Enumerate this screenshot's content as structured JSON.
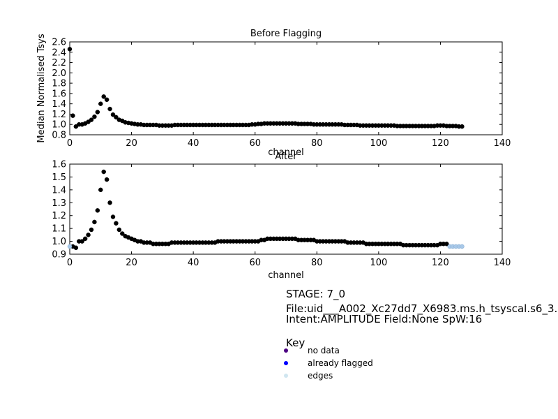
{
  "chart_data": [
    {
      "type": "scatter",
      "title": "Before Flagging",
      "xlabel": "channel",
      "ylabel": "Median Normalised Tsys",
      "xlim": [
        0,
        140
      ],
      "ylim": [
        0.8,
        2.6
      ],
      "xticks": [
        "0",
        "20",
        "40",
        "60",
        "80",
        "100",
        "120",
        "140"
      ],
      "yticks": [
        "0.8",
        "1.0",
        "1.2",
        "1.4",
        "1.6",
        "1.8",
        "2.0",
        "2.2",
        "2.4",
        "2.6"
      ],
      "series": [
        {
          "color": "#000000",
          "x": [
            0,
            1,
            2,
            3,
            4,
            5,
            6,
            7,
            8,
            9,
            10,
            11,
            12,
            13,
            14,
            15,
            16,
            17,
            18,
            19,
            20,
            21,
            22,
            23,
            24,
            25,
            26,
            27,
            28,
            29,
            30,
            31,
            32,
            33,
            34,
            35,
            36,
            37,
            38,
            39,
            40,
            41,
            42,
            43,
            44,
            45,
            46,
            47,
            48,
            49,
            50,
            51,
            52,
            53,
            54,
            55,
            56,
            57,
            58,
            59,
            60,
            61,
            62,
            63,
            64,
            65,
            66,
            67,
            68,
            69,
            70,
            71,
            72,
            73,
            74,
            75,
            76,
            77,
            78,
            79,
            80,
            81,
            82,
            83,
            84,
            85,
            86,
            87,
            88,
            89,
            90,
            91,
            92,
            93,
            94,
            95,
            96,
            97,
            98,
            99,
            100,
            101,
            102,
            103,
            104,
            105,
            106,
            107,
            108,
            109,
            110,
            111,
            112,
            113,
            114,
            115,
            116,
            117,
            118,
            119,
            120,
            121,
            122,
            123,
            124,
            125,
            126,
            127
          ],
          "y": [
            2.46,
            1.17,
            0.96,
            1.0,
            1.0,
            1.02,
            1.05,
            1.09,
            1.15,
            1.24,
            1.4,
            1.54,
            1.48,
            1.3,
            1.19,
            1.14,
            1.09,
            1.07,
            1.04,
            1.03,
            1.02,
            1.01,
            1.0,
            1.0,
            0.99,
            0.99,
            0.99,
            0.99,
            0.99,
            0.98,
            0.98,
            0.98,
            0.98,
            0.98,
            0.99,
            0.99,
            0.99,
            0.99,
            0.99,
            0.99,
            0.99,
            0.99,
            0.99,
            0.99,
            0.99,
            0.99,
            0.99,
            0.99,
            0.99,
            0.99,
            0.99,
            0.99,
            0.99,
            0.99,
            0.99,
            0.99,
            0.99,
            0.99,
            0.99,
            1.0,
            1.0,
            1.01,
            1.01,
            1.02,
            1.02,
            1.02,
            1.02,
            1.02,
            1.02,
            1.02,
            1.02,
            1.02,
            1.02,
            1.02,
            1.01,
            1.01,
            1.01,
            1.01,
            1.01,
            1.0,
            1.0,
            1.0,
            1.0,
            1.0,
            1.0,
            1.0,
            1.0,
            1.0,
            1.0,
            0.99,
            0.99,
            0.99,
            0.99,
            0.99,
            0.98,
            0.98,
            0.98,
            0.98,
            0.98,
            0.98,
            0.98,
            0.98,
            0.98,
            0.98,
            0.98,
            0.98,
            0.97,
            0.97,
            0.97,
            0.97,
            0.97,
            0.97,
            0.97,
            0.97,
            0.97,
            0.97,
            0.97,
            0.97,
            0.97,
            0.98,
            0.98,
            0.98,
            0.97,
            0.97,
            0.97,
            0.97,
            0.96,
            0.96
          ]
        }
      ]
    },
    {
      "type": "scatter",
      "title": "After",
      "xlabel": "channel",
      "ylabel": "",
      "xlim": [
        0,
        140
      ],
      "ylim": [
        0.9,
        1.6
      ],
      "xticks": [
        "0",
        "20",
        "40",
        "60",
        "80",
        "100",
        "120",
        "140"
      ],
      "yticks": [
        "0.9",
        "1.0",
        "1.1",
        "1.2",
        "1.3",
        "1.4",
        "1.5",
        "1.6"
      ],
      "series": [
        {
          "color": "#000000",
          "x": [
            1,
            2,
            3,
            4,
            5,
            6,
            7,
            8,
            9,
            10,
            11,
            12,
            13,
            14,
            15,
            16,
            17,
            18,
            19,
            20,
            21,
            22,
            23,
            24,
            25,
            26,
            27,
            28,
            29,
            30,
            31,
            32,
            33,
            34,
            35,
            36,
            37,
            38,
            39,
            40,
            41,
            42,
            43,
            44,
            45,
            46,
            47,
            48,
            49,
            50,
            51,
            52,
            53,
            54,
            55,
            56,
            57,
            58,
            59,
            60,
            61,
            62,
            63,
            64,
            65,
            66,
            67,
            68,
            69,
            70,
            71,
            72,
            73,
            74,
            75,
            76,
            77,
            78,
            79,
            80,
            81,
            82,
            83,
            84,
            85,
            86,
            87,
            88,
            89,
            90,
            91,
            92,
            93,
            94,
            95,
            96,
            97,
            98,
            99,
            100,
            101,
            102,
            103,
            104,
            105,
            106,
            107,
            108,
            109,
            110,
            111,
            112,
            113,
            114,
            115,
            116,
            117,
            118,
            119,
            120,
            121,
            122
          ],
          "y": [
            0.96,
            0.95,
            1.0,
            1.0,
            1.02,
            1.05,
            1.09,
            1.15,
            1.24,
            1.4,
            1.54,
            1.48,
            1.3,
            1.19,
            1.14,
            1.09,
            1.06,
            1.04,
            1.03,
            1.02,
            1.01,
            1.0,
            1.0,
            0.99,
            0.99,
            0.99,
            0.98,
            0.98,
            0.98,
            0.98,
            0.98,
            0.98,
            0.99,
            0.99,
            0.99,
            0.99,
            0.99,
            0.99,
            0.99,
            0.99,
            0.99,
            0.99,
            0.99,
            0.99,
            0.99,
            0.99,
            0.99,
            1.0,
            1.0,
            1.0,
            1.0,
            1.0,
            1.0,
            1.0,
            1.0,
            1.0,
            1.0,
            1.0,
            1.0,
            1.0,
            1.0,
            1.01,
            1.01,
            1.02,
            1.02,
            1.02,
            1.02,
            1.02,
            1.02,
            1.02,
            1.02,
            1.02,
            1.02,
            1.01,
            1.01,
            1.01,
            1.01,
            1.01,
            1.01,
            1.0,
            1.0,
            1.0,
            1.0,
            1.0,
            1.0,
            1.0,
            1.0,
            1.0,
            1.0,
            0.99,
            0.99,
            0.99,
            0.99,
            0.99,
            0.99,
            0.98,
            0.98,
            0.98,
            0.98,
            0.98,
            0.98,
            0.98,
            0.98,
            0.98,
            0.98,
            0.98,
            0.98,
            0.97,
            0.97,
            0.97,
            0.97,
            0.97,
            0.97,
            0.97,
            0.97,
            0.97,
            0.97,
            0.97,
            0.97,
            0.98,
            0.98,
            0.98
          ]
        },
        {
          "color": "#a8c8e8",
          "x": [
            0,
            123,
            124,
            125,
            126,
            127
          ],
          "y": [
            0.96,
            0.96,
            0.96,
            0.96,
            0.96,
            0.96
          ]
        }
      ]
    }
  ],
  "info": {
    "stage": "STAGE: 7_0",
    "file": "File:uid___A002_Xc27dd7_X6983.ms.h_tsyscal.s6_3.",
    "intent": "Intent:AMPLITUDE Field:None SpW:16"
  },
  "key": {
    "title": "Key",
    "items": [
      {
        "label": "no data",
        "color": "#4b0082"
      },
      {
        "label": "already flagged",
        "color": "#0000ff"
      },
      {
        "label": "edges",
        "color": "#d0e6f0"
      }
    ]
  }
}
